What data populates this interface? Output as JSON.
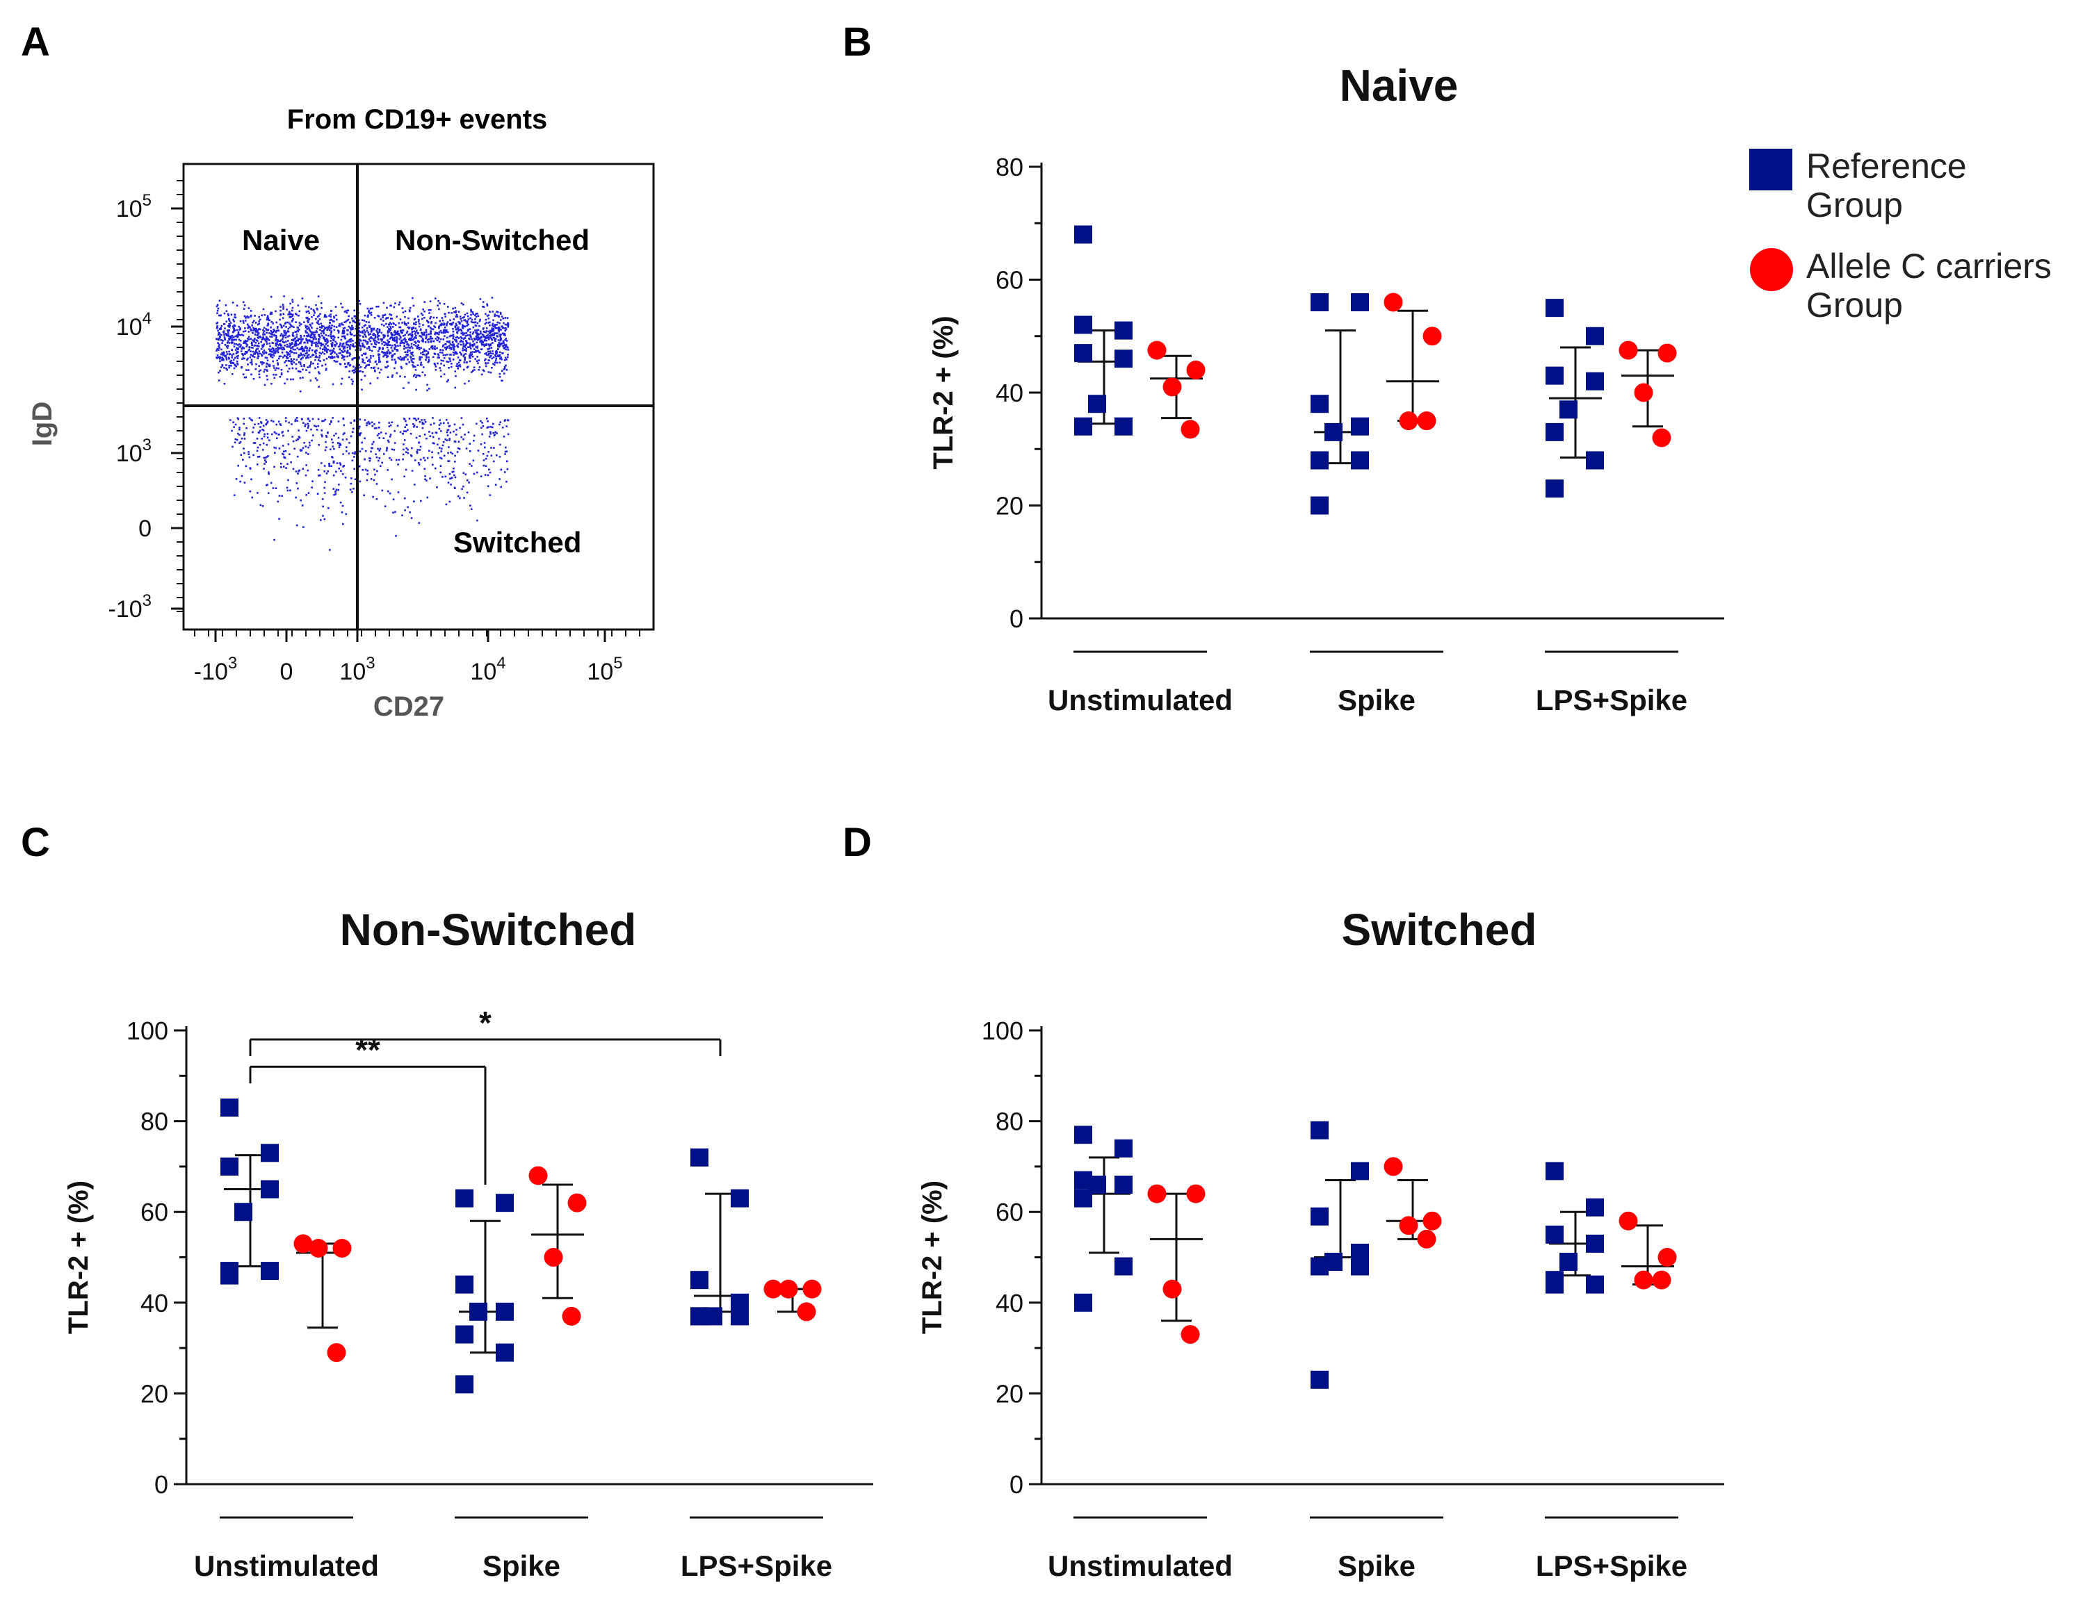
{
  "colors": {
    "reference": "#001188",
    "allele": "#ff0000",
    "dots": "#2222dd",
    "ink": "#111111",
    "gray": "#555555"
  },
  "legend": {
    "items": [
      {
        "label_line1": "Reference",
        "label_line2": "Group"
      },
      {
        "label_line1": "Allele C carriers",
        "label_line2": "Group"
      }
    ]
  },
  "chart_data": [
    {
      "panel": "A",
      "type": "scatter",
      "title": "From CD19+ events",
      "xlabel": "CD27",
      "ylabel": "IgD",
      "xticks": [
        {
          "base": "-10",
          "exp": "3"
        },
        {
          "base": "0",
          "exp": ""
        },
        {
          "base": "10",
          "exp": "3"
        },
        {
          "base": "10",
          "exp": "4"
        },
        {
          "base": "10",
          "exp": "5"
        }
      ],
      "yticks": [
        {
          "base": "-10",
          "exp": "3"
        },
        {
          "base": "0",
          "exp": ""
        },
        {
          "base": "10",
          "exp": "3"
        },
        {
          "base": "10",
          "exp": "4"
        },
        {
          "base": "10",
          "exp": "5"
        }
      ],
      "quadrants": {
        "top_left": "Naive",
        "top_right": "Non-Switched",
        "bottom_right": "Switched"
      }
    },
    {
      "panel": "B",
      "type": "scatter",
      "title": "Naive",
      "ylabel": "TLR-2 + (%)",
      "ylim": [
        0,
        80
      ],
      "yticks": [
        0,
        20,
        40,
        60,
        80
      ],
      "categories": [
        "Unstimulated",
        "Spike",
        "LPS+Spike"
      ],
      "series": [
        {
          "name": "Reference Group",
          "points": [
            [
              52,
              51,
              47,
              46,
              38,
              34,
              34,
              68
            ],
            [
              56,
              56,
              38,
              34,
              33,
              28,
              28,
              20
            ],
            [
              55,
              50,
              43,
              42,
              37,
              33,
              28,
              23
            ]
          ],
          "mean": [
            45.5,
            33,
            39
          ],
          "sd_low": [
            34.5,
            27.5,
            28.5
          ],
          "sd_high": [
            51,
            51,
            48
          ]
        },
        {
          "name": "Allele C carriers Group",
          "points": [
            [
              47.5,
              44,
              41,
              33.5
            ],
            [
              56,
              50,
              35,
              35
            ],
            [
              47.5,
              47,
              40,
              32
            ]
          ],
          "mean": [
            42.5,
            42,
            43
          ],
          "sd_low": [
            35.5,
            35,
            34
          ],
          "sd_high": [
            46.5,
            54.5,
            47.5
          ]
        }
      ]
    },
    {
      "panel": "C",
      "type": "scatter",
      "title": "Non-Switched",
      "ylabel": "TLR-2 + (%)",
      "ylim": [
        0,
        100
      ],
      "yticks": [
        0,
        20,
        40,
        60,
        80,
        100
      ],
      "categories": [
        "Unstimulated",
        "Spike",
        "LPS+Spike"
      ],
      "series": [
        {
          "name": "Reference Group",
          "points": [
            [
              83,
              73,
              70,
              65,
              60,
              47,
              47,
              46
            ],
            [
              63,
              62,
              44,
              38,
              38,
              33,
              29,
              22
            ],
            [
              72,
              63,
              45,
              40,
              37,
              37,
              37,
              37
            ]
          ],
          "mean": [
            65,
            38,
            41.5
          ],
          "sd_low": [
            48,
            29,
            38
          ],
          "sd_high": [
            72.5,
            58,
            64
          ]
        },
        {
          "name": "Allele C carriers Group",
          "points": [
            [
              53,
              52,
              52,
              29
            ],
            [
              68,
              62,
              50,
              37
            ],
            [
              43,
              43,
              43,
              38
            ]
          ],
          "mean": [
            51,
            55,
            43
          ],
          "sd_low": [
            34.5,
            41,
            38
          ],
          "sd_high": [
            53,
            66,
            43
          ]
        }
      ],
      "annotations": [
        {
          "label": "**",
          "from": "Unstimulated",
          "to": "Spike"
        },
        {
          "label": "*",
          "from": "Unstimulated",
          "to": "LPS+Spike"
        }
      ]
    },
    {
      "panel": "D",
      "type": "scatter",
      "title": "Switched",
      "ylabel": "TLR-2 + (%)",
      "ylim": [
        0,
        100
      ],
      "yticks": [
        0,
        20,
        40,
        60,
        80,
        100
      ],
      "categories": [
        "Unstimulated",
        "Spike",
        "LPS+Spike"
      ],
      "series": [
        {
          "name": "Reference Group",
          "points": [
            [
              77,
              74,
              67,
              66,
              66,
              63,
              48,
              40
            ],
            [
              78,
              69,
              59,
              51,
              49,
              48,
              48,
              23
            ],
            [
              69,
              61,
              55,
              53,
              49,
              45,
              44,
              44
            ]
          ],
          "mean": [
            64,
            50,
            53
          ],
          "sd_low": [
            51,
            50,
            46
          ],
          "sd_high": [
            72,
            67,
            60
          ]
        },
        {
          "name": "Allele C carriers Group",
          "points": [
            [
              64,
              64,
              43,
              33
            ],
            [
              70,
              58,
              57,
              54
            ],
            [
              58,
              50,
              45,
              45
            ]
          ],
          "mean": [
            54,
            58,
            48
          ],
          "sd_low": [
            36,
            54,
            44
          ],
          "sd_high": [
            64,
            67,
            57
          ]
        }
      ]
    }
  ],
  "panel_letters": [
    "A",
    "B",
    "C",
    "D"
  ]
}
